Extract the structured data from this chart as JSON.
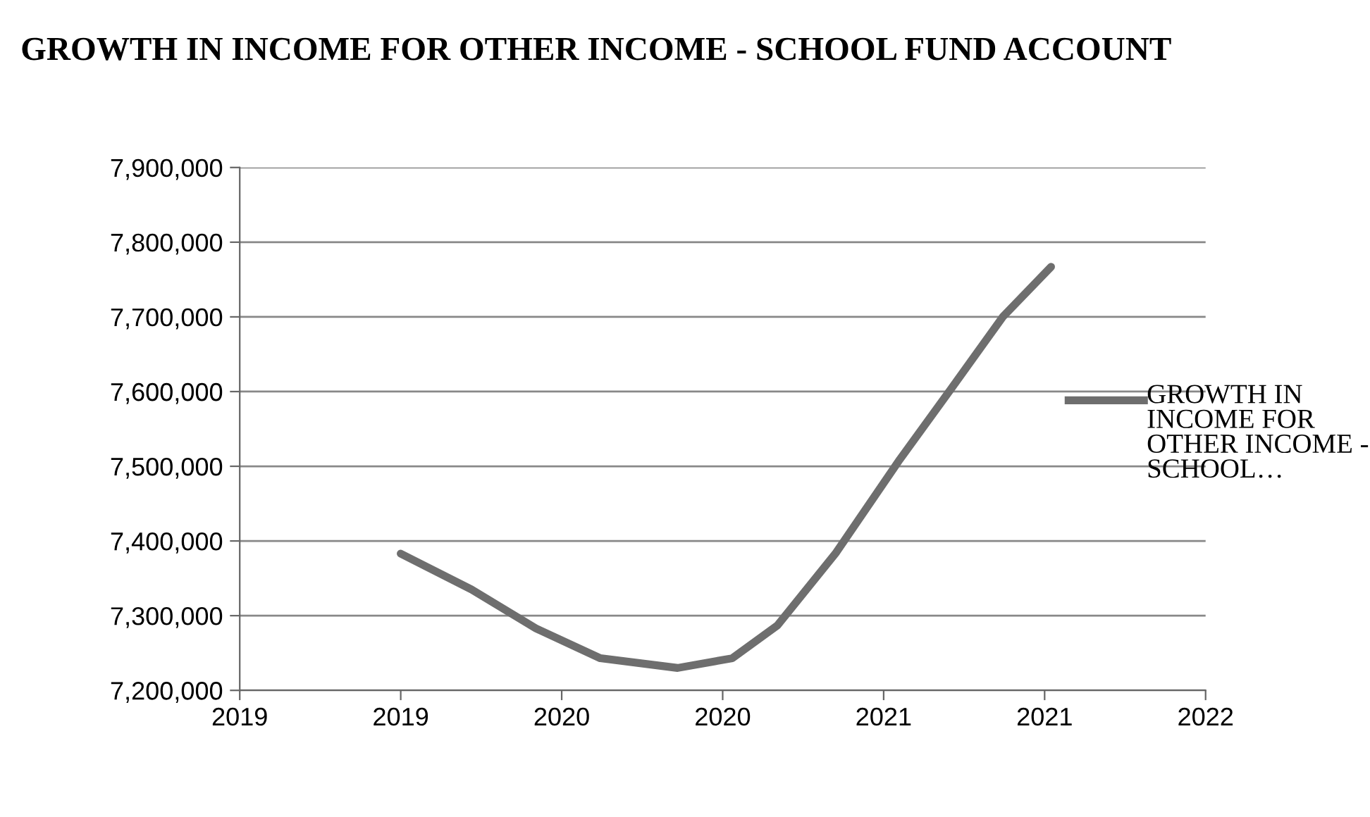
{
  "chart_data": {
    "type": "line",
    "title": "GROWTH IN INCOME FOR OTHER INCOME - SCHOOL FUND ACCOUNT",
    "x": [
      2019.5,
      2019.72,
      2019.92,
      2020.12,
      2020.36,
      2020.53,
      2020.67,
      2020.85,
      2021.05,
      2021.21,
      2021.37,
      2021.52
    ],
    "series": [
      {
        "name": "GROWTH IN INCOME FOR OTHER INCOME - SCHOOL…",
        "color": "#6e6e6e",
        "values": [
          7383000,
          7335000,
          7283000,
          7243000,
          7230000,
          7243000,
          7287000,
          7383000,
          7509000,
          7604000,
          7700000,
          7767000
        ]
      }
    ],
    "xlim": [
      2019,
      2022
    ],
    "xticks": [
      2019,
      {
        "value": 2019.5,
        "label": "2019"
      },
      {
        "value": 2020,
        "label": "2020"
      },
      {
        "value": 2020.5,
        "label": "2020"
      },
      {
        "value": 2021,
        "label": "2021"
      },
      {
        "value": 2021.5,
        "label": "2021"
      },
      2022
    ],
    "ylim": [
      7200000,
      7900000
    ],
    "yticks": [
      {
        "value": 7200000,
        "label": "7,200,000"
      },
      {
        "value": 7300000,
        "label": "7,300,000"
      },
      {
        "value": 7400000,
        "label": "7,400,000"
      },
      {
        "value": 7500000,
        "label": "7,500,000"
      },
      {
        "value": 7600000,
        "label": "7,600,000"
      },
      {
        "value": 7700000,
        "label": "7,700,000"
      },
      {
        "value": 7800000,
        "label": "7,800,000"
      },
      {
        "value": 7900000,
        "label": "7,900,000"
      }
    ],
    "grid": "y",
    "legend": "right",
    "marker": "none",
    "line_style": "solid"
  }
}
